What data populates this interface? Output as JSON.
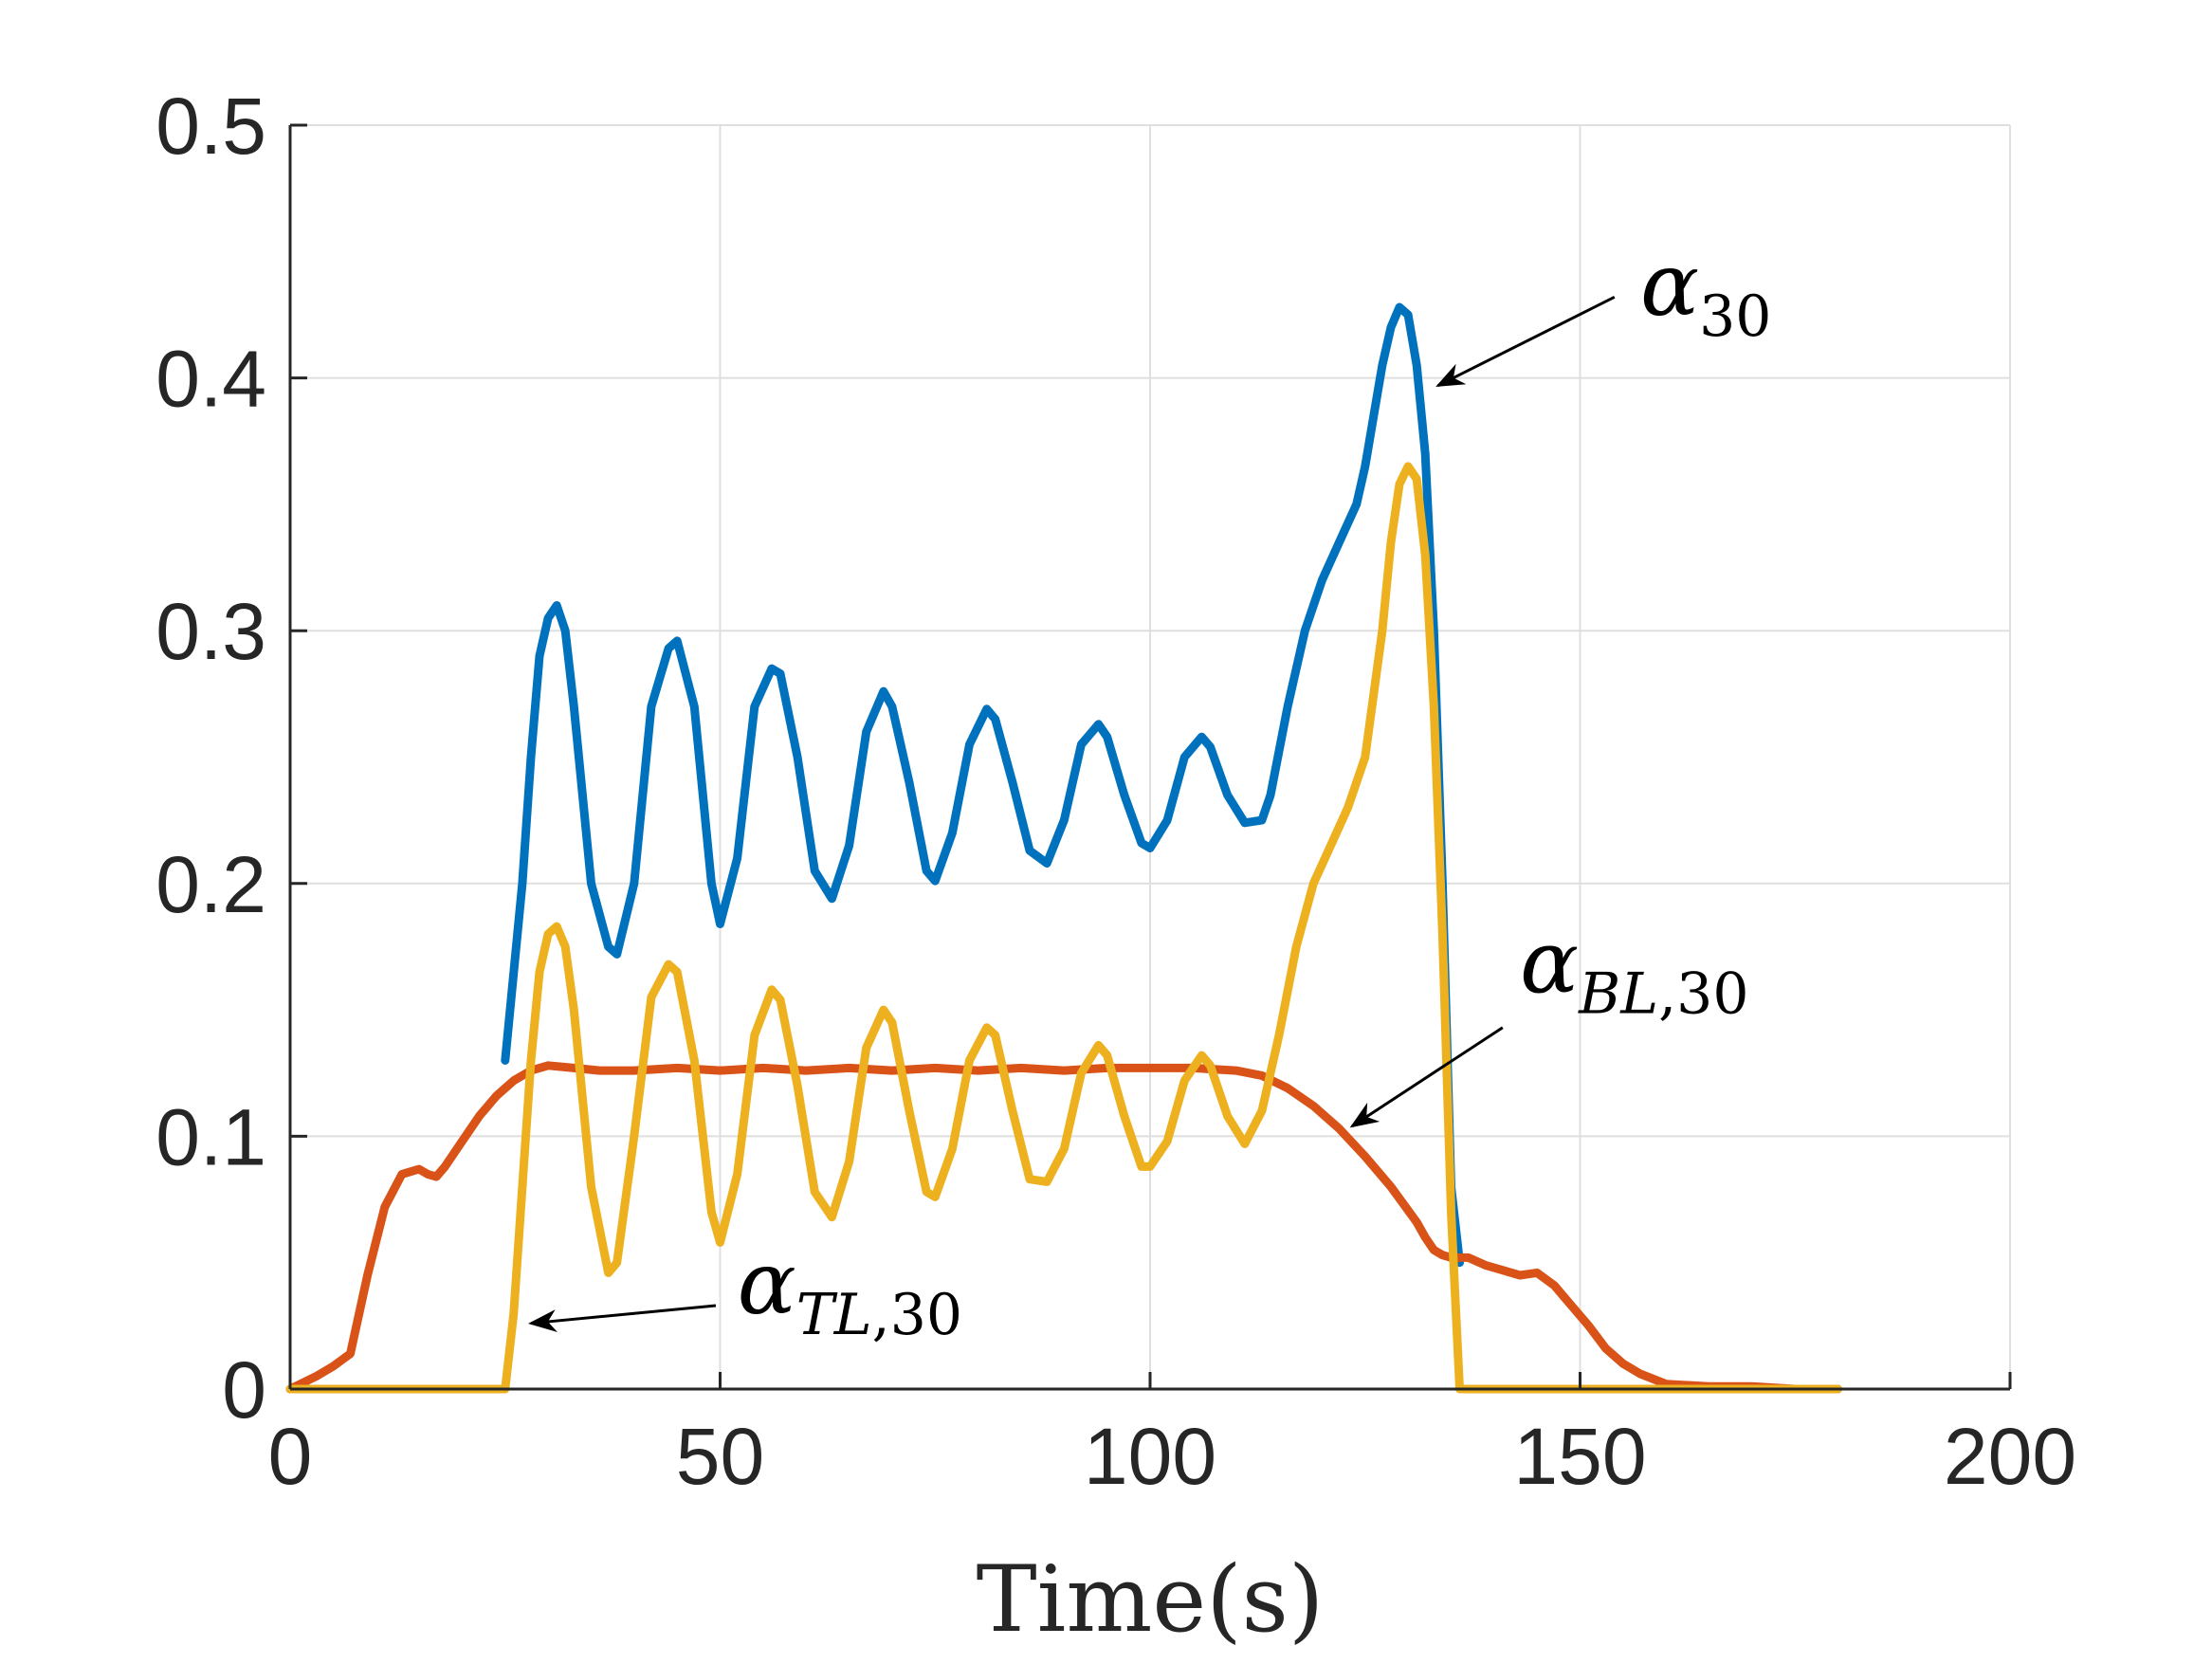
{
  "chart_data": {
    "type": "line",
    "title": "",
    "xlabel": "Time(s)",
    "ylabel": "",
    "xlim": [
      0,
      200
    ],
    "ylim": [
      0,
      0.5
    ],
    "grid": true,
    "xticks": [
      0,
      50,
      100,
      150,
      200
    ],
    "yticks": [
      0,
      0.1,
      0.2,
      0.3,
      0.4,
      0.5
    ],
    "xtick_labels": [
      "0",
      "50",
      "100",
      "150",
      "200"
    ],
    "ytick_labels": [
      "0",
      "0.1",
      "0.2",
      "0.3",
      "0.4",
      "0.5"
    ],
    "series": [
      {
        "name": "alpha_30",
        "color": "#0072BD",
        "x": [
          25,
          27,
          28,
          29,
          30,
          31,
          32,
          33,
          35,
          37,
          38,
          40,
          42,
          44,
          45,
          47,
          49,
          50,
          52,
          54,
          56,
          57,
          59,
          61,
          63,
          65,
          67,
          69,
          70,
          72,
          74,
          75,
          77,
          79,
          81,
          82,
          84,
          86,
          88,
          90,
          92,
          94,
          95,
          97,
          99,
          100,
          102,
          104,
          106,
          107,
          109,
          111,
          113,
          114,
          116,
          118,
          120,
          122,
          124,
          125,
          126,
          127,
          128,
          129,
          130,
          131,
          132,
          133,
          134,
          135,
          136
        ],
        "y": [
          0.13,
          0.2,
          0.25,
          0.29,
          0.305,
          0.31,
          0.3,
          0.27,
          0.2,
          0.175,
          0.172,
          0.2,
          0.27,
          0.293,
          0.296,
          0.27,
          0.2,
          0.184,
          0.21,
          0.27,
          0.285,
          0.283,
          0.25,
          0.205,
          0.194,
          0.215,
          0.26,
          0.276,
          0.27,
          0.24,
          0.205,
          0.201,
          0.22,
          0.255,
          0.269,
          0.265,
          0.24,
          0.213,
          0.208,
          0.225,
          0.255,
          0.263,
          0.258,
          0.235,
          0.216,
          0.214,
          0.225,
          0.25,
          0.258,
          0.254,
          0.235,
          0.224,
          0.225,
          0.235,
          0.27,
          0.3,
          0.32,
          0.335,
          0.35,
          0.365,
          0.385,
          0.405,
          0.42,
          0.428,
          0.425,
          0.405,
          0.37,
          0.3,
          0.2,
          0.08,
          0.05
        ]
      },
      {
        "name": "alpha_BL,30",
        "color": "#D95319",
        "x": [
          0,
          3,
          5,
          7,
          9,
          11,
          13,
          15,
          16,
          17,
          18,
          20,
          22,
          24,
          26,
          28,
          30,
          33,
          36,
          40,
          45,
          50,
          55,
          60,
          65,
          70,
          75,
          80,
          85,
          90,
          95,
          100,
          105,
          110,
          113,
          116,
          119,
          122,
          125,
          128,
          131,
          132,
          133,
          134,
          135,
          137,
          139,
          141,
          143,
          145,
          147,
          149,
          151,
          153,
          155,
          157,
          160,
          165,
          170,
          175,
          180
        ],
        "y": [
          0,
          0.005,
          0.009,
          0.014,
          0.045,
          0.072,
          0.085,
          0.087,
          0.085,
          0.084,
          0.088,
          0.098,
          0.108,
          0.116,
          0.122,
          0.126,
          0.128,
          0.127,
          0.126,
          0.126,
          0.127,
          0.126,
          0.127,
          0.126,
          0.127,
          0.126,
          0.127,
          0.126,
          0.127,
          0.126,
          0.127,
          0.127,
          0.127,
          0.126,
          0.124,
          0.119,
          0.112,
          0.103,
          0.092,
          0.08,
          0.066,
          0.06,
          0.055,
          0.053,
          0.052,
          0.052,
          0.049,
          0.047,
          0.045,
          0.046,
          0.041,
          0.033,
          0.025,
          0.016,
          0.01,
          0.006,
          0.002,
          0.001,
          0.001,
          0.0,
          0.0
        ]
      },
      {
        "name": "alpha_TL,30",
        "color": "#EDB120",
        "x": [
          0,
          25,
          26,
          27,
          28,
          29,
          30,
          31,
          32,
          33,
          35,
          37,
          38,
          40,
          42,
          44,
          45,
          47,
          49,
          50,
          52,
          54,
          56,
          57,
          59,
          61,
          63,
          65,
          67,
          69,
          70,
          72,
          74,
          75,
          77,
          79,
          81,
          82,
          84,
          86,
          88,
          90,
          92,
          94,
          95,
          97,
          99,
          100,
          102,
          104,
          106,
          107,
          109,
          111,
          113,
          115,
          117,
          119,
          121,
          123,
          125,
          127,
          128,
          129,
          130,
          131,
          132,
          133,
          134,
          135,
          136,
          140,
          150,
          160,
          170,
          180
        ],
        "y": [
          0,
          0,
          0.03,
          0.08,
          0.13,
          0.165,
          0.18,
          0.183,
          0.175,
          0.15,
          0.08,
          0.046,
          0.05,
          0.1,
          0.155,
          0.168,
          0.165,
          0.13,
          0.07,
          0.058,
          0.085,
          0.14,
          0.158,
          0.154,
          0.12,
          0.078,
          0.068,
          0.09,
          0.135,
          0.15,
          0.145,
          0.11,
          0.078,
          0.076,
          0.095,
          0.13,
          0.143,
          0.14,
          0.11,
          0.083,
          0.082,
          0.095,
          0.125,
          0.136,
          0.132,
          0.108,
          0.088,
          0.088,
          0.098,
          0.122,
          0.132,
          0.128,
          0.108,
          0.097,
          0.11,
          0.14,
          0.175,
          0.2,
          0.215,
          0.23,
          0.25,
          0.3,
          0.335,
          0.358,
          0.365,
          0.36,
          0.33,
          0.27,
          0.18,
          0.07,
          0.0,
          0.0,
          0.0,
          0.0,
          0.0,
          0.0
        ]
      }
    ],
    "annotations": [
      {
        "symbol": "α",
        "subscript": "30",
        "subscript_italic": "",
        "text_at": [
          157,
          0.425
        ],
        "arrow_tail": [
          154,
          0.432
        ],
        "arrow_head": [
          133.5,
          0.397
        ]
      },
      {
        "symbol": "α",
        "subscript": ",30",
        "subscript_italic": "BL",
        "text_at": [
          143,
          0.157
        ],
        "arrow_tail": [
          141,
          0.143
        ],
        "arrow_head": [
          123.5,
          0.104
        ]
      },
      {
        "symbol": "α",
        "subscript": ",30",
        "subscript_italic": "TL",
        "text_at": [
          52,
          0.03
        ],
        "arrow_tail": [
          49.5,
          0.033
        ],
        "arrow_head": [
          28,
          0.026
        ]
      }
    ]
  }
}
